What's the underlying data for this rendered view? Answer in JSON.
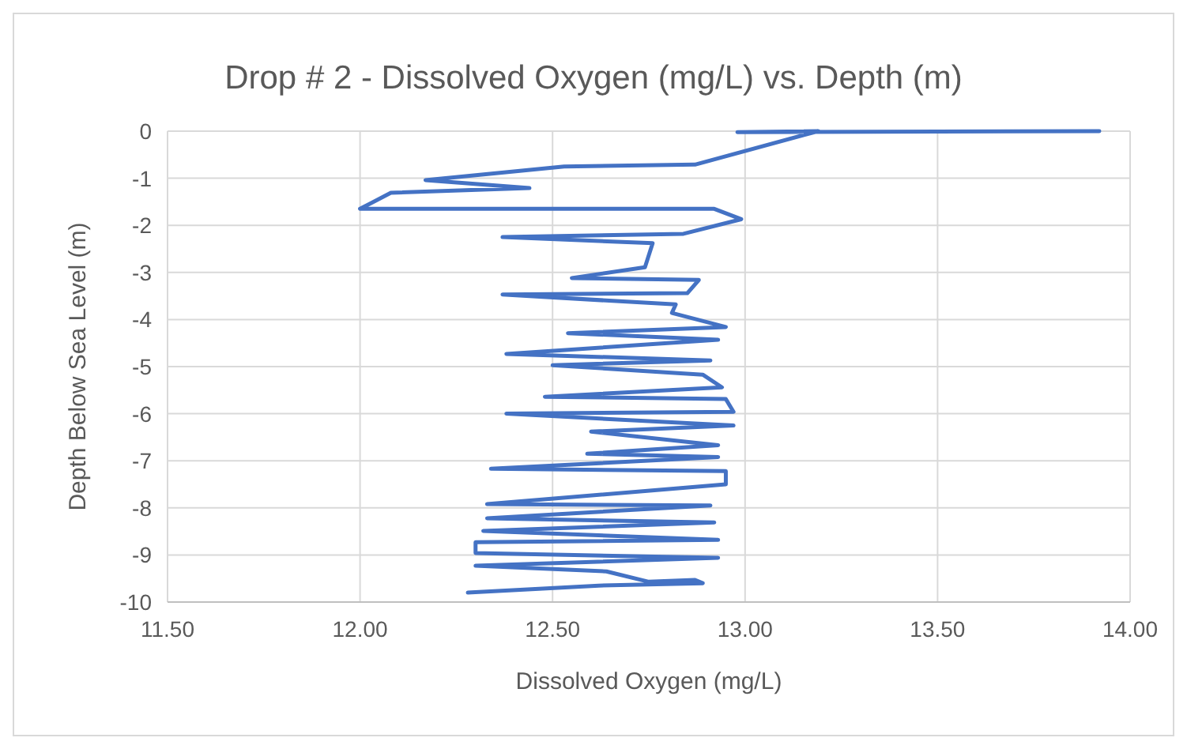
{
  "chart_data": {
    "type": "line",
    "title": "Drop # 2 - Dissolved Oxygen (mg/L) vs. Depth (m)",
    "xlabel": "Dissolved Oxygen (mg/L)",
    "ylabel": "Depth Below Sea Level (m)",
    "series": [
      {
        "color": "#4472c4",
        "x": [
          13.92,
          12.98,
          13.19,
          12.87,
          12.53,
          12.17,
          12.44,
          12.08,
          12.0,
          12.92,
          12.99,
          12.84,
          12.37,
          12.76,
          12.74,
          12.55,
          12.88,
          12.85,
          12.37,
          12.82,
          12.81,
          12.95,
          12.54,
          12.93,
          12.38,
          12.91,
          12.5,
          12.89,
          12.94,
          12.48,
          12.95,
          12.97,
          12.38,
          12.97,
          12.6,
          12.93,
          12.59,
          12.93,
          12.34,
          12.95,
          12.95,
          12.33,
          12.91,
          12.33,
          12.92,
          12.32,
          12.93,
          12.3,
          12.3,
          12.93,
          12.3,
          12.64,
          12.75,
          12.87,
          12.89,
          12.62,
          12.28
        ],
        "values": [
          0,
          -0.02,
          0,
          -0.71,
          -0.75,
          -1.04,
          -1.21,
          -1.31,
          -1.65,
          -1.65,
          -1.87,
          -2.18,
          -2.25,
          -2.38,
          -2.89,
          -3.12,
          -3.16,
          -3.44,
          -3.47,
          -3.68,
          -3.86,
          -4.16,
          -4.29,
          -4.43,
          -4.73,
          -4.87,
          -4.97,
          -5.17,
          -5.44,
          -5.64,
          -5.69,
          -5.96,
          -6.0,
          -6.25,
          -6.38,
          -6.67,
          -6.85,
          -6.92,
          -7.17,
          -7.22,
          -7.5,
          -7.92,
          -7.95,
          -8.22,
          -8.31,
          -8.49,
          -8.68,
          -8.73,
          -8.96,
          -9.06,
          -9.23,
          -9.35,
          -9.57,
          -9.53,
          -9.6,
          -9.65,
          -9.8
        ]
      }
    ],
    "xlim": [
      11.5,
      14
    ],
    "xticks": [
      {
        "value": 11.5,
        "label": "11.50"
      },
      {
        "value": 12,
        "label": "12.00"
      },
      {
        "value": 12.5,
        "label": "12.50"
      },
      {
        "value": 13,
        "label": "13.00"
      },
      {
        "value": 13.5,
        "label": "13.50"
      },
      {
        "value": 14,
        "label": "14.00"
      }
    ],
    "ylim": [
      -10,
      0
    ],
    "yticks": [
      0,
      -1,
      -2,
      -3,
      -4,
      -5,
      -6,
      -7,
      -8,
      -9,
      -10
    ],
    "grid": true,
    "marker": "none",
    "line_style": "solid"
  }
}
